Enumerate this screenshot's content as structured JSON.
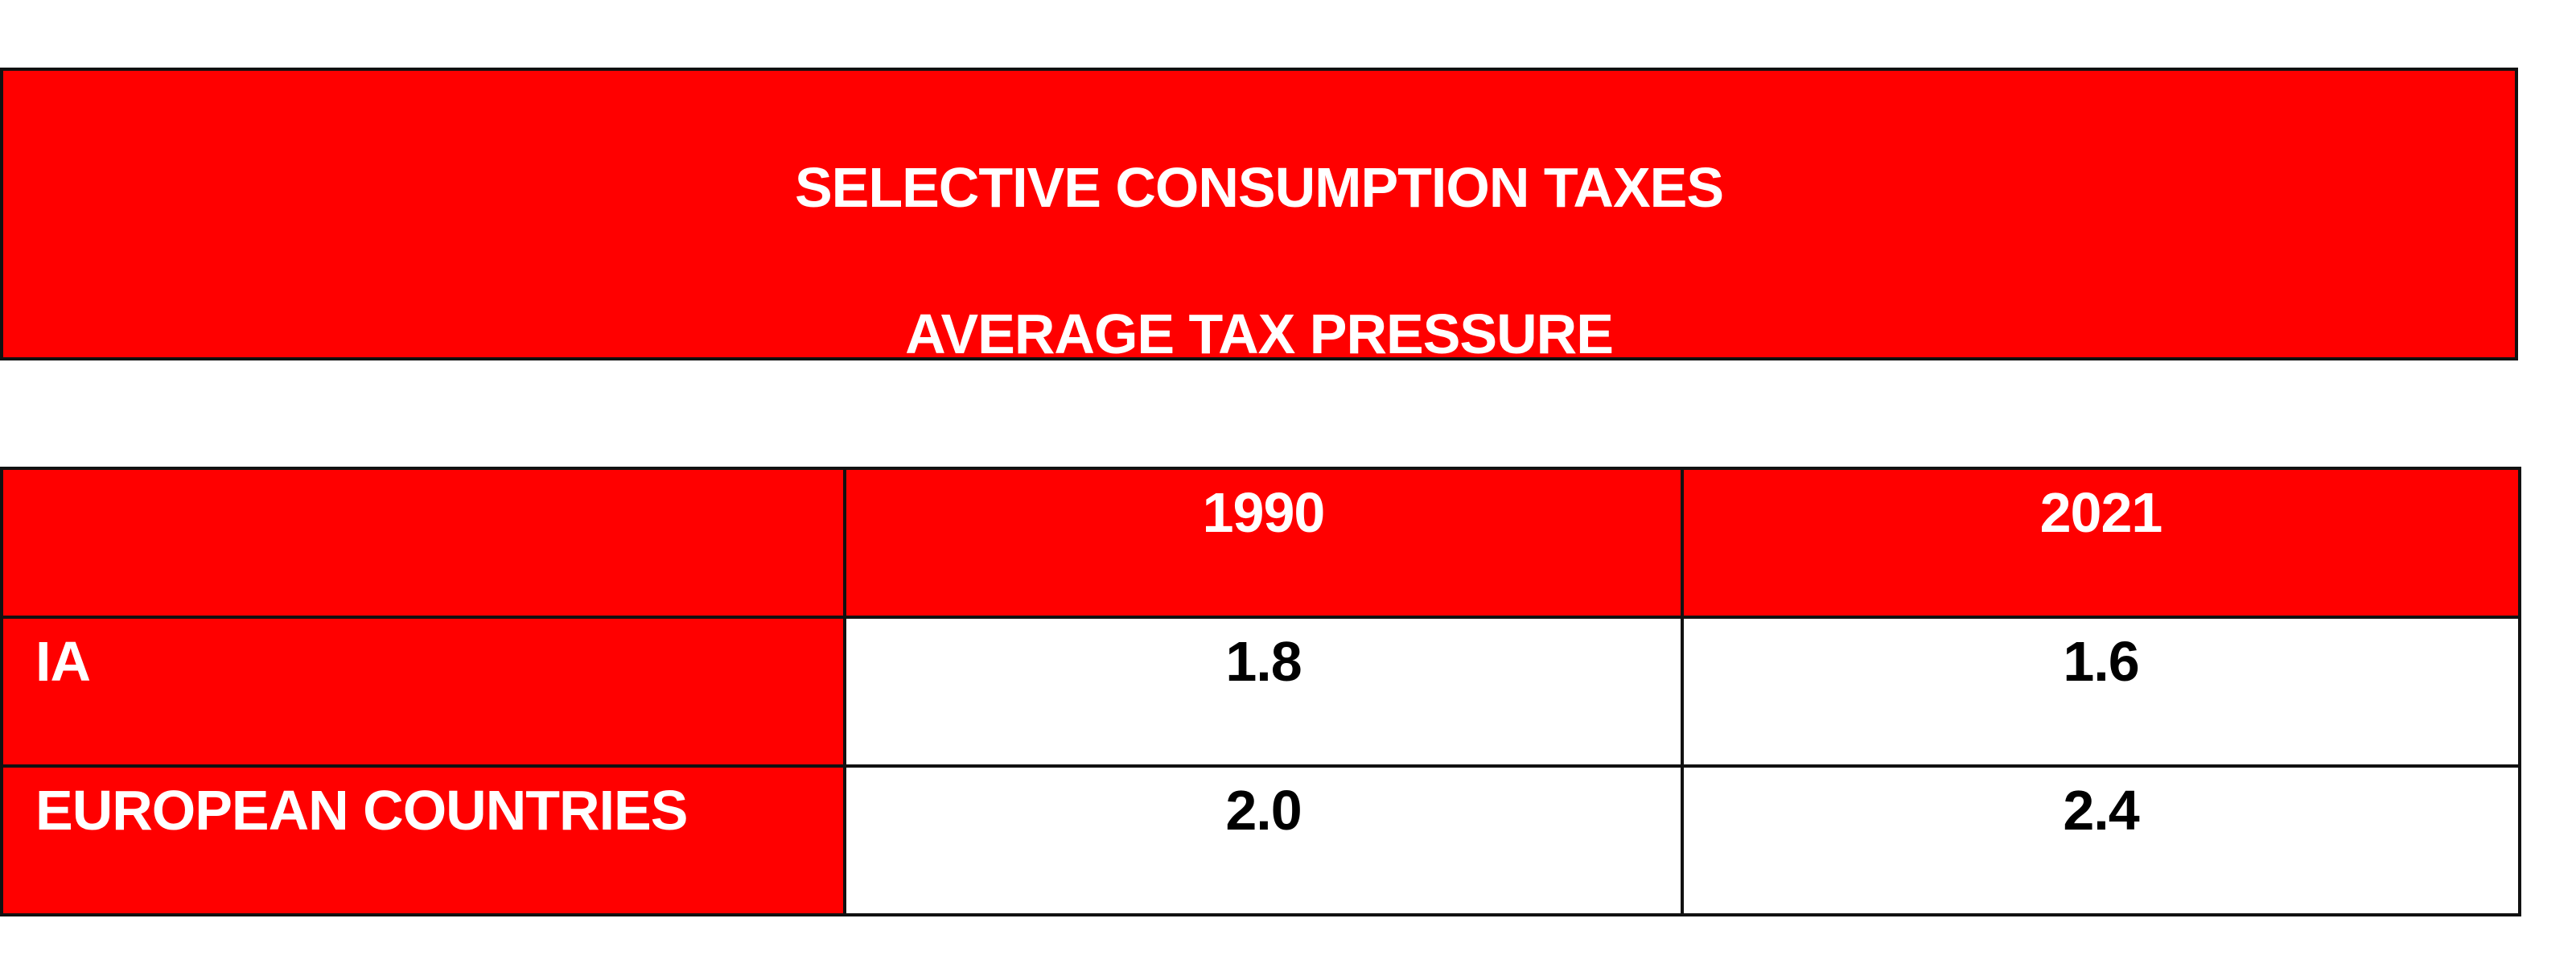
{
  "header": {
    "title": "SELECTIVE CONSUMPTION TAXES",
    "subtitle": "AVERAGE TAX PRESSURE"
  },
  "table": {
    "columns": [
      "",
      "1990",
      "2021"
    ],
    "rows": [
      {
        "label": "IA",
        "values": [
          "1.8",
          "1.6"
        ]
      },
      {
        "label": "EUROPEAN COUNTRIES",
        "values": [
          "2.0",
          "2.4"
        ]
      }
    ]
  },
  "colors": {
    "accent": "#ff0000",
    "header_text": "#ffffff",
    "body_text": "#000000",
    "border": "#111111"
  }
}
